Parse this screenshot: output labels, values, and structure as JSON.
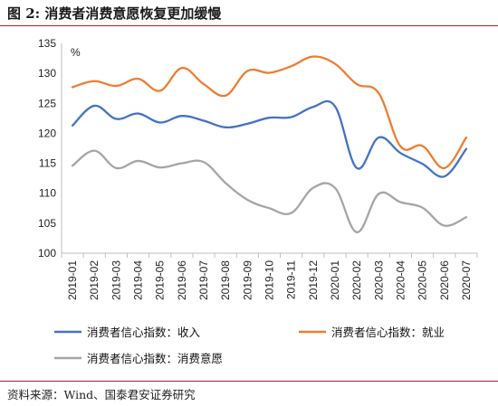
{
  "header": {
    "title": "图 2:  消费者消费意愿恢复更加缓慢"
  },
  "footer": {
    "source": "资料来源：Wind、国泰君安证券研究"
  },
  "chart_data": {
    "type": "line",
    "title": "",
    "ylabel": "%",
    "xlabel": "",
    "ylim": [
      100,
      135
    ],
    "yticks": [
      100,
      105,
      110,
      115,
      120,
      125,
      130,
      135
    ],
    "categories": [
      "2019-01",
      "2019-02",
      "2019-03",
      "2019-04",
      "2019-05",
      "2019-06",
      "2019-07",
      "2019-08",
      "2019-09",
      "2019-10",
      "2019-11",
      "2019-12",
      "2020-01",
      "2020-02",
      "2020-03",
      "2020-04",
      "2020-05",
      "2020-06",
      "2020-07"
    ],
    "grid": false,
    "legend_position": "bottom",
    "series": [
      {
        "name": "消费者信心指数：收入",
        "color": "#4472C4",
        "values": [
          121.3,
          124.6,
          122.4,
          123.3,
          121.8,
          122.9,
          122.1,
          121.0,
          121.6,
          122.6,
          122.7,
          124.4,
          124.5,
          114.2,
          119.3,
          116.7,
          114.9,
          112.8,
          117.4
        ]
      },
      {
        "name": "消费者信心指数：就业",
        "color": "#ED7D31",
        "values": [
          127.7,
          128.7,
          127.9,
          129.1,
          127.1,
          130.9,
          128.2,
          126.3,
          130.4,
          130.1,
          131.2,
          132.8,
          131.6,
          128.2,
          126.7,
          117.8,
          117.9,
          114.2,
          119.3
        ]
      },
      {
        "name": "消费者信心指数：消费意愿",
        "color": "#A5A5A5",
        "values": [
          114.6,
          117.1,
          114.2,
          115.4,
          114.3,
          115.0,
          115.2,
          111.7,
          108.9,
          107.5,
          106.7,
          110.9,
          110.9,
          103.5,
          109.9,
          108.5,
          107.6,
          104.6,
          106.0
        ]
      }
    ]
  }
}
